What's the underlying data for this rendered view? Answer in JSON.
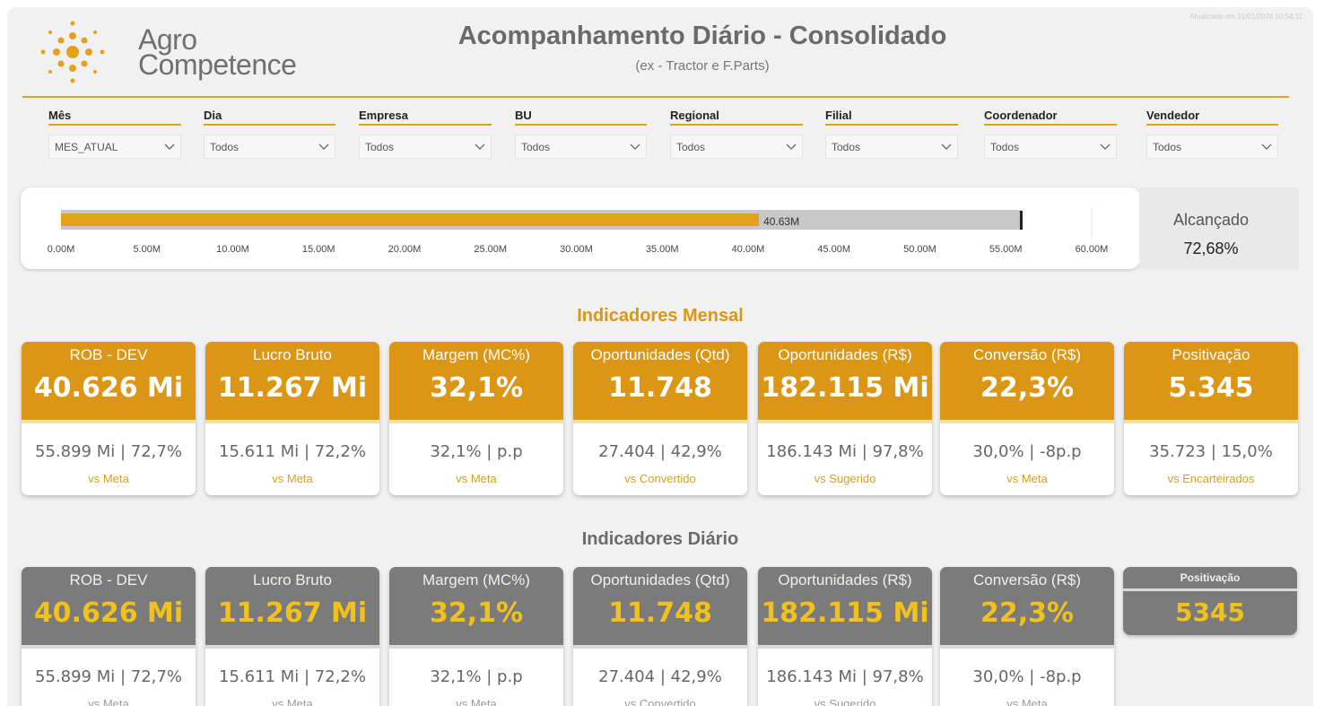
{
  "header": {
    "logo_line1": "Agro",
    "logo_line2": "Competence",
    "title": "Acompanhamento Diário - Consolidado",
    "subtitle": "(ex - Tractor e F.Parts)",
    "updated": "Atualizado em 31/01/2024 10:54:11"
  },
  "colors": {
    "accent": "#e3a21a",
    "monthly_header": "#db9616",
    "daily_header": "#7b7b7b",
    "daily_value": "#f2c21b"
  },
  "filters": [
    {
      "label": "Mês",
      "value": "MES_ATUAL"
    },
    {
      "label": "Dia",
      "value": "Todos"
    },
    {
      "label": "Empresa",
      "value": "Todos"
    },
    {
      "label": "BU",
      "value": "Todos"
    },
    {
      "label": "Regional",
      "value": "Todos"
    },
    {
      "label": "Filial",
      "value": "Todos"
    },
    {
      "label": "Coordenador",
      "value": "Todos"
    },
    {
      "label": "Vendedor",
      "value": "Todos"
    }
  ],
  "gauge": {
    "value": 40.63,
    "value_label": "40.63M",
    "target": 55.9,
    "axis_max": 60,
    "ticks": [
      "0.00M",
      "5.00M",
      "10.00M",
      "15.00M",
      "20.00M",
      "25.00M",
      "30.00M",
      "35.00M",
      "40.00M",
      "45.00M",
      "50.00M",
      "55.00M",
      "60.00M"
    ],
    "achieved_label": "Alcançado",
    "achieved_value": "72,68%"
  },
  "monthly": {
    "section_title": "Indicadores Mensal",
    "cards": [
      {
        "name": "ROB - DEV",
        "value": "40.626 Mi",
        "sub": "55.899 Mi | 72,7%",
        "foot": "vs Meta"
      },
      {
        "name": "Lucro Bruto",
        "value": "11.267 Mi",
        "sub": "15.611 Mi | 72,2%",
        "foot": "vs Meta"
      },
      {
        "name": "Margem (MC%)",
        "value": "32,1%",
        "sub": "32,1% | p.p",
        "foot": "vs Meta"
      },
      {
        "name": "Oportunidades (Qtd)",
        "value": "11.748",
        "sub": "27.404 | 42,9%",
        "foot": "vs Convertido"
      },
      {
        "name": "Oportunidades (R$)",
        "value": "182.115 Mi",
        "sub": "186.143 Mi | 97,8%",
        "foot": "vs Sugerido"
      },
      {
        "name": "Conversão (R$)",
        "value": "22,3%",
        "sub": "30,0% | -8p.p",
        "foot": "vs Meta"
      },
      {
        "name": "Positivação",
        "value": "5.345",
        "sub": "35.723 | 15,0%",
        "foot": "vs Encarteirados"
      }
    ]
  },
  "daily": {
    "section_title": "Indicadores Diário",
    "cards": [
      {
        "name": "ROB - DEV",
        "value": "40.626 Mi",
        "sub": "55.899 Mi | 72,7%",
        "foot": "vs Meta"
      },
      {
        "name": "Lucro Bruto",
        "value": "11.267 Mi",
        "sub": "15.611 Mi | 72,2%",
        "foot": "vs Meta"
      },
      {
        "name": "Margem (MC%)",
        "value": "32,1%",
        "sub": "32,1% | p.p",
        "foot": "vs Meta"
      },
      {
        "name": "Oportunidades (Qtd)",
        "value": "11.748",
        "sub": "27.404 | 42,9%",
        "foot": "vs Convertido"
      },
      {
        "name": "Oportunidades (R$)",
        "value": "182.115 Mi",
        "sub": "186.143 Mi | 97,8%",
        "foot": "vs Sugerido"
      },
      {
        "name": "Conversão (R$)",
        "value": "22,3%",
        "sub": "30,0% | -8p.p",
        "foot": "vs Meta"
      }
    ],
    "positivacao": {
      "name": "Positivação",
      "value": "5345"
    }
  }
}
